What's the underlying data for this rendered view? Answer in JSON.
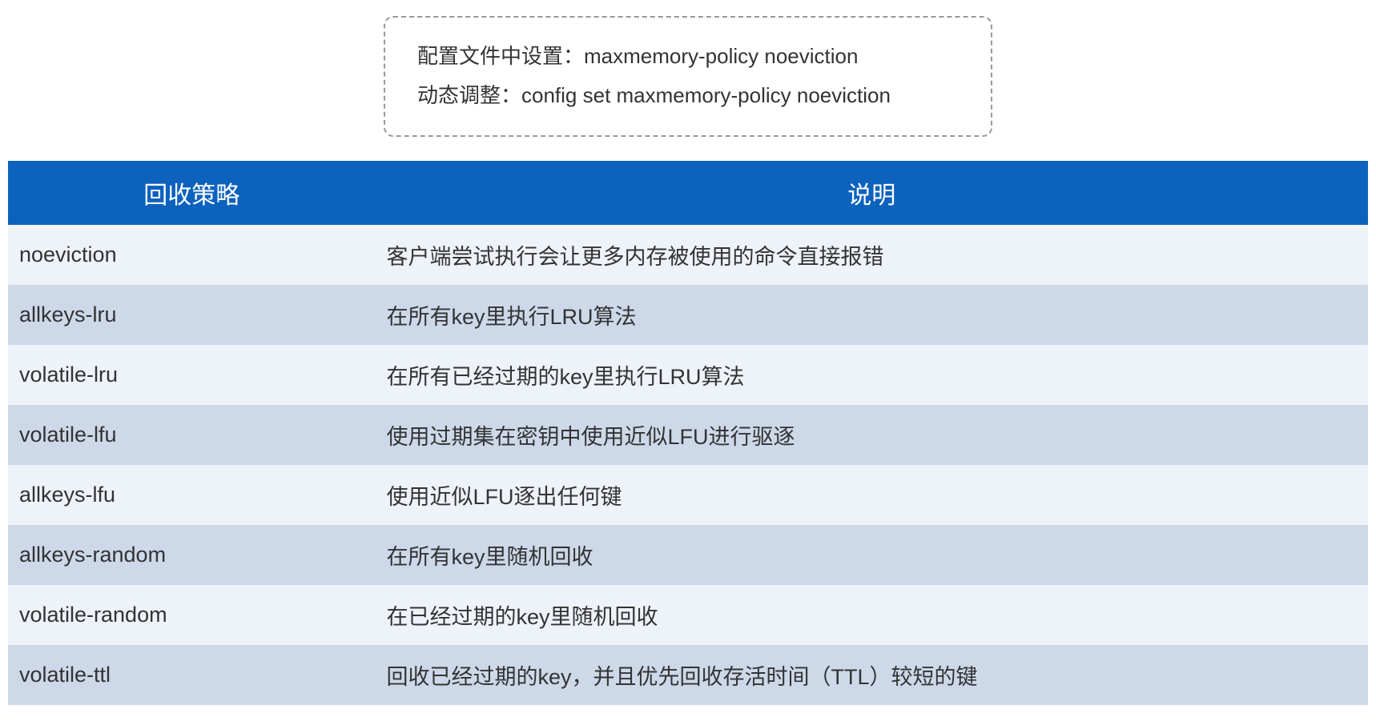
{
  "config_box": {
    "line1": "配置文件中设置：maxmemory-policy noeviction",
    "line2": "动态调整：config set maxmemory-policy noeviction"
  },
  "table": {
    "columns": [
      "回收策略",
      "说明"
    ],
    "col_widths_pct": [
      27,
      73
    ],
    "header_bg": "#0c62bd",
    "header_fg": "#ffffff",
    "row_even_bg": "#eef2f9",
    "row_odd_bg": "#cdd8e9",
    "header_fontsize": 30,
    "cell_fontsize": 27,
    "rows": [
      {
        "policy": "noeviction",
        "desc": "客户端尝试执行会让更多内存被使用的命令直接报错"
      },
      {
        "policy": "allkeys-lru",
        "desc": "在所有key里执行LRU算法"
      },
      {
        "policy": "volatile-lru",
        "desc": "在所有已经过期的key里执行LRU算法"
      },
      {
        "policy": "volatile-lfu",
        "desc": "使用过期集在密钥中使用近似LFU进行驱逐"
      },
      {
        "policy": "allkeys-lfu",
        "desc": "使用近似LFU逐出任何键"
      },
      {
        "policy": "allkeys-random",
        "desc": "在所有key里随机回收"
      },
      {
        "policy": "volatile-random",
        "desc": "在已经过期的key里随机回收"
      },
      {
        "policy": "volatile-ttl",
        "desc": "回收已经过期的key，并且优先回收存活时间（TTL）较短的键"
      }
    ]
  },
  "colors": {
    "border_dash": "#999999",
    "text": "#333333",
    "background": "#ffffff"
  }
}
